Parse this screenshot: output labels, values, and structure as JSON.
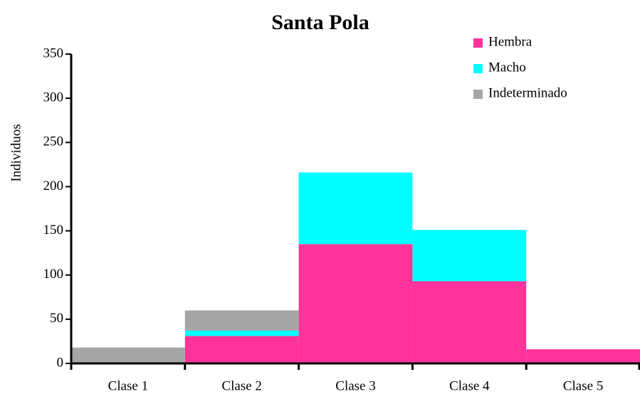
{
  "chart_data": {
    "type": "bar",
    "stacked": true,
    "title": "Santa Pola",
    "y_label": "Individuos",
    "categories": [
      "Clase 1",
      "Clase 2",
      "Clase 3",
      "Clase 4",
      "Clase 5"
    ],
    "series": [
      {
        "name": "Hembra",
        "color": "#ff3399",
        "values": [
          0,
          31,
          135,
          93,
          16
        ]
      },
      {
        "name": "Macho",
        "color": "#00ffff",
        "values": [
          0,
          6,
          81,
          58,
          0
        ]
      },
      {
        "name": "Indeterminado",
        "color": "#a6a6a6",
        "values": [
          18,
          23,
          0,
          0,
          0
        ]
      }
    ],
    "ylim": [
      0,
      350
    ],
    "yticks": [
      0,
      50,
      100,
      150,
      200,
      250,
      300,
      350
    ],
    "legend": "upper right"
  }
}
